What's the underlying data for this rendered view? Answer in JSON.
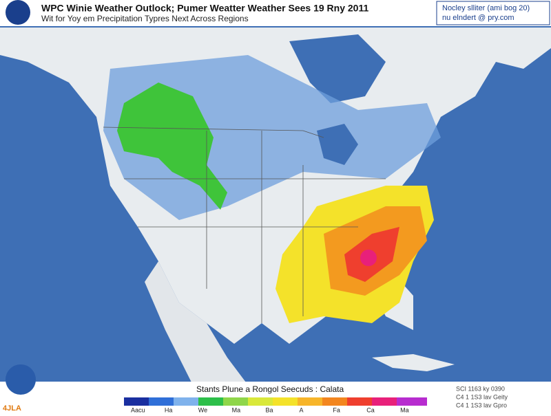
{
  "header": {
    "title": "WPC Winie Weather Outlock; Pumer Weatter Weather Sees 19 Rny 2011",
    "subtitle": "Wit for Yoy em Precipitation Typres Next Across Regions"
  },
  "info_box": {
    "line1": "Nocley slliter (ami bog 20)",
    "line2": "nu elndert @ pry.com"
  },
  "legend": {
    "title": "Stants Plune a Rongol Seecuds : Calata",
    "labels": [
      "Aacu",
      "Ha",
      "We",
      "Ma",
      "Ba",
      "A",
      "Fa",
      "Ca",
      "Ma"
    ]
  },
  "footer": {
    "credit_lines": [
      "SCI 1163 ky 0390",
      "C4 1 1S3 lav Geity",
      "C4 1 1S3 lav Gpro"
    ],
    "corner_text": "4JLA"
  }
}
